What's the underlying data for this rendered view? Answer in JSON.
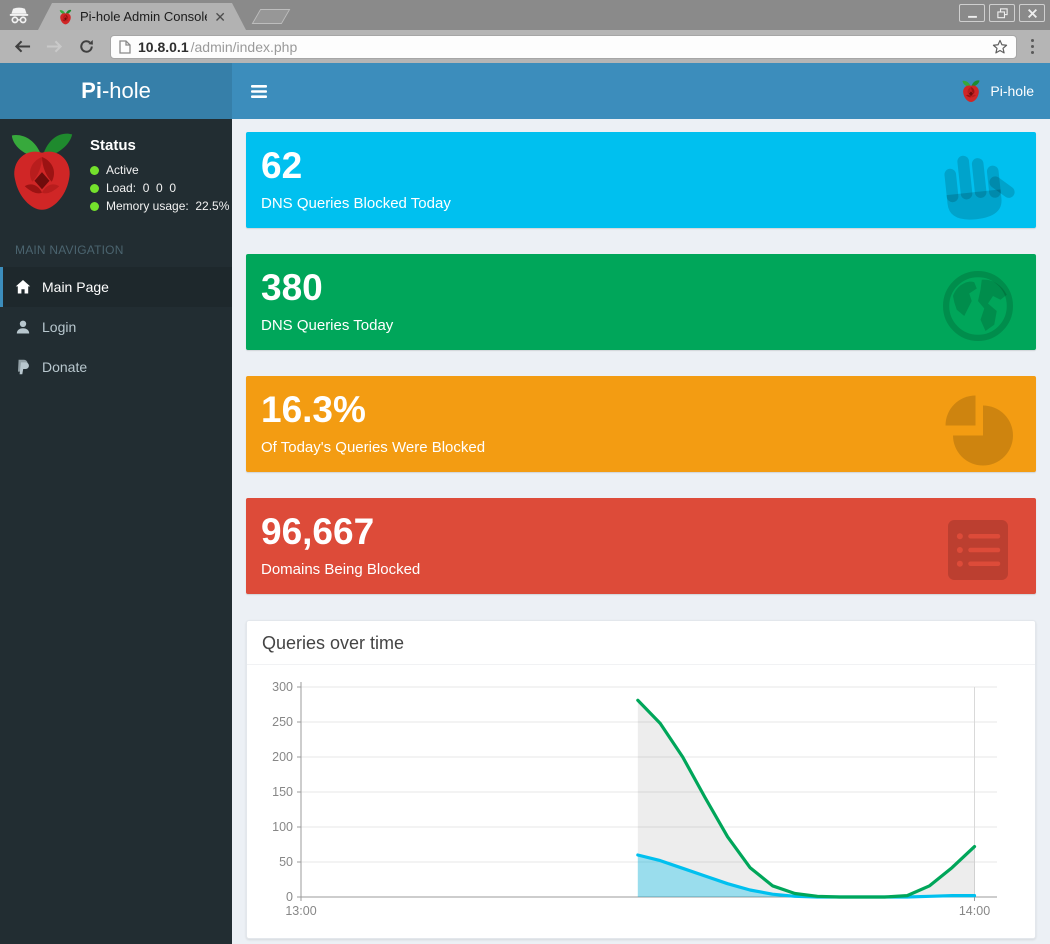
{
  "browser": {
    "tab_title": "Pi-hole Admin Console",
    "url": {
      "host": "10.8.0.1",
      "path": "/admin/index.php"
    },
    "icons": [
      "incognito-icon",
      "raspberry-favicon-icon",
      "back-icon",
      "forward-icon",
      "reload-icon",
      "page-icon",
      "bookmark-star-icon",
      "menu-dots-icon",
      "minimize-icon",
      "restore-icon",
      "close-icon"
    ]
  },
  "header": {
    "logo_prefix": "Pi",
    "logo_suffix": "-hole",
    "brand": "Pi-hole"
  },
  "sidebar": {
    "status_title": "Status",
    "status_items": [
      "Active",
      "Load:  0  0  0",
      "Memory usage:  22.5%"
    ],
    "nav_header": "MAIN NAVIGATION",
    "items": [
      {
        "label": "Main Page",
        "icon": "home-icon",
        "active": true
      },
      {
        "label": "Login",
        "icon": "user-icon",
        "active": false
      },
      {
        "label": "Donate",
        "icon": "paypal-icon",
        "active": false
      }
    ]
  },
  "cards": [
    {
      "value": "62",
      "label": "DNS Queries Blocked Today",
      "color": "#00c0ef",
      "icon": "hand-icon"
    },
    {
      "value": "380",
      "label": "DNS Queries Today",
      "color": "#00a65a",
      "icon": "globe-icon"
    },
    {
      "value": "16.3%",
      "label": "Of Today's Queries Were Blocked",
      "color": "#f39c12",
      "icon": "pie-chart-icon"
    },
    {
      "value": "96,667",
      "label": "Domains Being Blocked",
      "color": "#dd4b39",
      "icon": "list-icon"
    }
  ],
  "chart_data": {
    "type": "area",
    "title": "Queries over time",
    "legend_position": "none",
    "grid": true,
    "x_axis": {
      "unit": "minutes after 13:00",
      "range": [
        0,
        62
      ],
      "ticks": [
        {
          "pos": 0,
          "label": "13:00"
        },
        {
          "pos": 60,
          "label": "14:00"
        }
      ]
    },
    "y_axis": {
      "range": [
        0,
        300
      ],
      "ticks": [
        0,
        50,
        100,
        150,
        200,
        250,
        300
      ]
    },
    "series": [
      {
        "name": "green-series (total queries)",
        "color": "#00a65a",
        "fill": "rgba(0,0,0,0.07)",
        "points": [
          [
            30,
            281
          ],
          [
            32,
            248
          ],
          [
            34,
            200
          ],
          [
            36,
            142
          ],
          [
            38,
            86
          ],
          [
            40,
            42
          ],
          [
            42,
            16
          ],
          [
            44,
            5
          ],
          [
            46,
            1
          ],
          [
            48,
            0
          ],
          [
            50,
            0
          ],
          [
            52,
            0
          ],
          [
            54,
            2
          ],
          [
            56,
            16
          ],
          [
            58,
            42
          ],
          [
            60,
            72
          ]
        ]
      },
      {
        "name": "blue-series (blocked queries)",
        "color": "#00c0ef",
        "fill": "rgba(0,192,239,0.35)",
        "points": [
          [
            30,
            60
          ],
          [
            32,
            52
          ],
          [
            34,
            41
          ],
          [
            36,
            30
          ],
          [
            38,
            19
          ],
          [
            40,
            10
          ],
          [
            42,
            4
          ],
          [
            44,
            1
          ],
          [
            46,
            0
          ],
          [
            48,
            0
          ],
          [
            50,
            0
          ],
          [
            52,
            0
          ],
          [
            54,
            0
          ],
          [
            56,
            1
          ],
          [
            58,
            2
          ],
          [
            60,
            2
          ]
        ]
      }
    ]
  },
  "theme": {
    "navbar": "#3c8dbc",
    "logo_bg": "#367fa9",
    "sidebar_bg": "#222d32",
    "content_bg": "#ecf0f5",
    "status_dot": "#74e12c"
  }
}
